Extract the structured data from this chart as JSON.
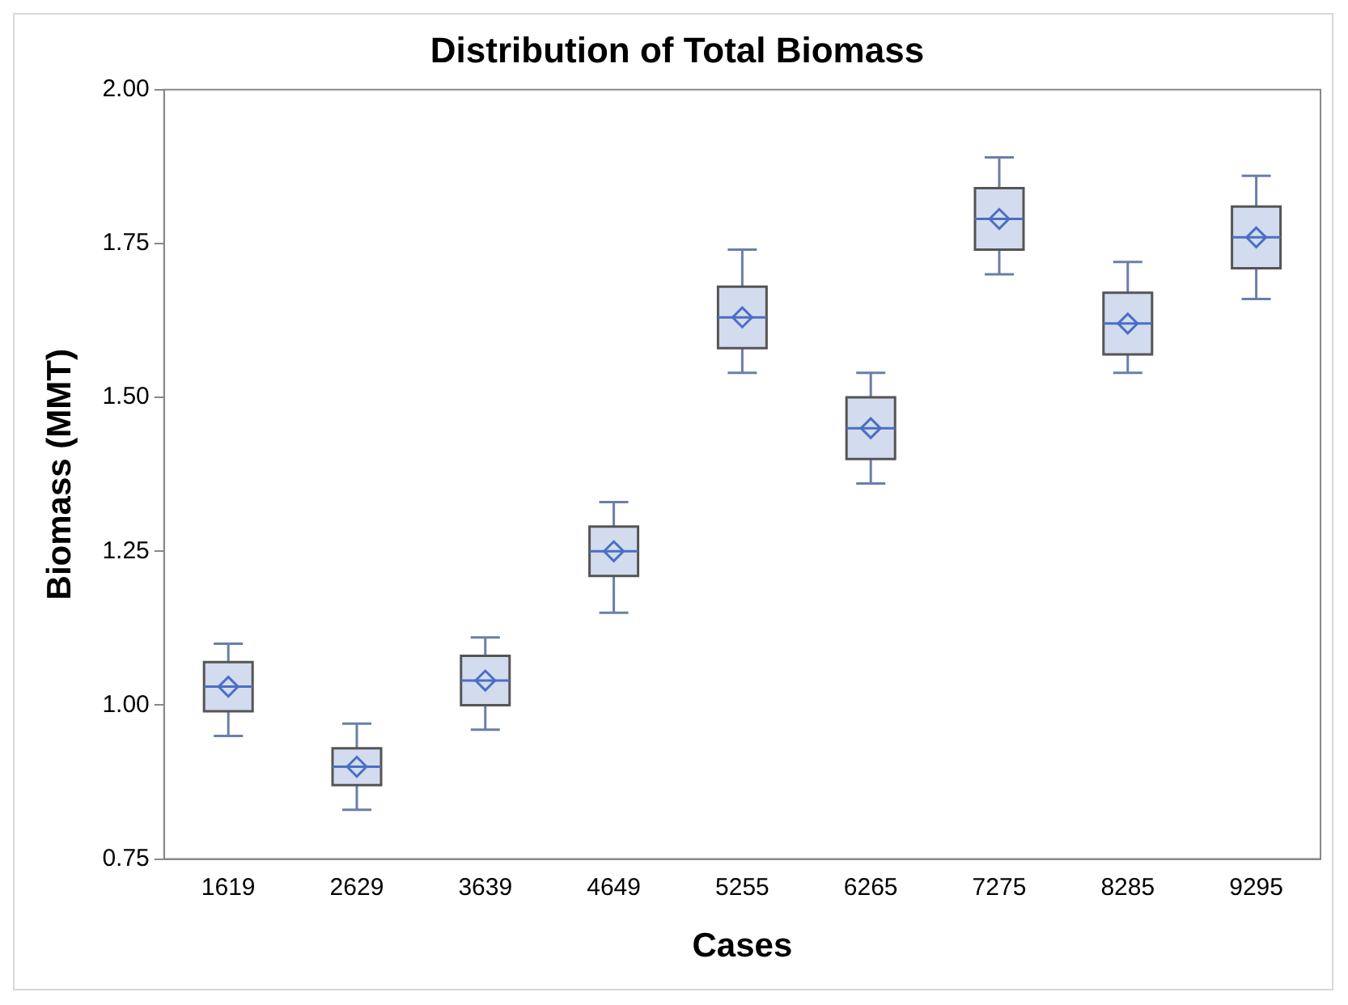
{
  "chart_data": {
    "type": "box",
    "title": "Distribution of Total Biomass",
    "xlabel": "Cases",
    "ylabel": "Biomass (MMT)",
    "categories": [
      "1619",
      "2629",
      "3639",
      "4649",
      "5255",
      "6265",
      "7275",
      "8285",
      "9295"
    ],
    "color": "#d3dcee",
    "marker": "diamond",
    "grid": false,
    "legend": false,
    "ylim": [
      0.75,
      2.0
    ],
    "yticks": [
      {
        "value": 0.75,
        "label": "0.75"
      },
      {
        "value": 1,
        "label": "1.00"
      },
      {
        "value": 1.25,
        "label": "1.25"
      },
      {
        "value": 1.5,
        "label": "1.50"
      },
      {
        "value": 1.75,
        "label": "1.75"
      },
      {
        "value": 2,
        "label": "2.00"
      }
    ],
    "boxes": [
      {
        "low": 0.95,
        "q1": 0.99,
        "median": 1.03,
        "q3": 1.07,
        "high": 1.1,
        "mean": 1.03
      },
      {
        "low": 0.83,
        "q1": 0.87,
        "median": 0.9,
        "q3": 0.93,
        "high": 0.97,
        "mean": 0.9
      },
      {
        "low": 0.96,
        "q1": 1.0,
        "median": 1.04,
        "q3": 1.08,
        "high": 1.11,
        "mean": 1.04
      },
      {
        "low": 1.15,
        "q1": 1.21,
        "median": 1.25,
        "q3": 1.29,
        "high": 1.33,
        "mean": 1.25
      },
      {
        "low": 1.54,
        "q1": 1.58,
        "median": 1.63,
        "q3": 1.68,
        "high": 1.74,
        "mean": 1.63
      },
      {
        "low": 1.36,
        "q1": 1.4,
        "median": 1.45,
        "q3": 1.5,
        "high": 1.54,
        "mean": 1.45
      },
      {
        "low": 1.7,
        "q1": 1.74,
        "median": 1.79,
        "q3": 1.84,
        "high": 1.89,
        "mean": 1.79
      },
      {
        "low": 1.54,
        "q1": 1.57,
        "median": 1.62,
        "q3": 1.67,
        "high": 1.72,
        "mean": 1.62
      },
      {
        "low": 1.66,
        "q1": 1.71,
        "median": 1.76,
        "q3": 1.81,
        "high": 1.86,
        "mean": 1.76
      }
    ]
  }
}
